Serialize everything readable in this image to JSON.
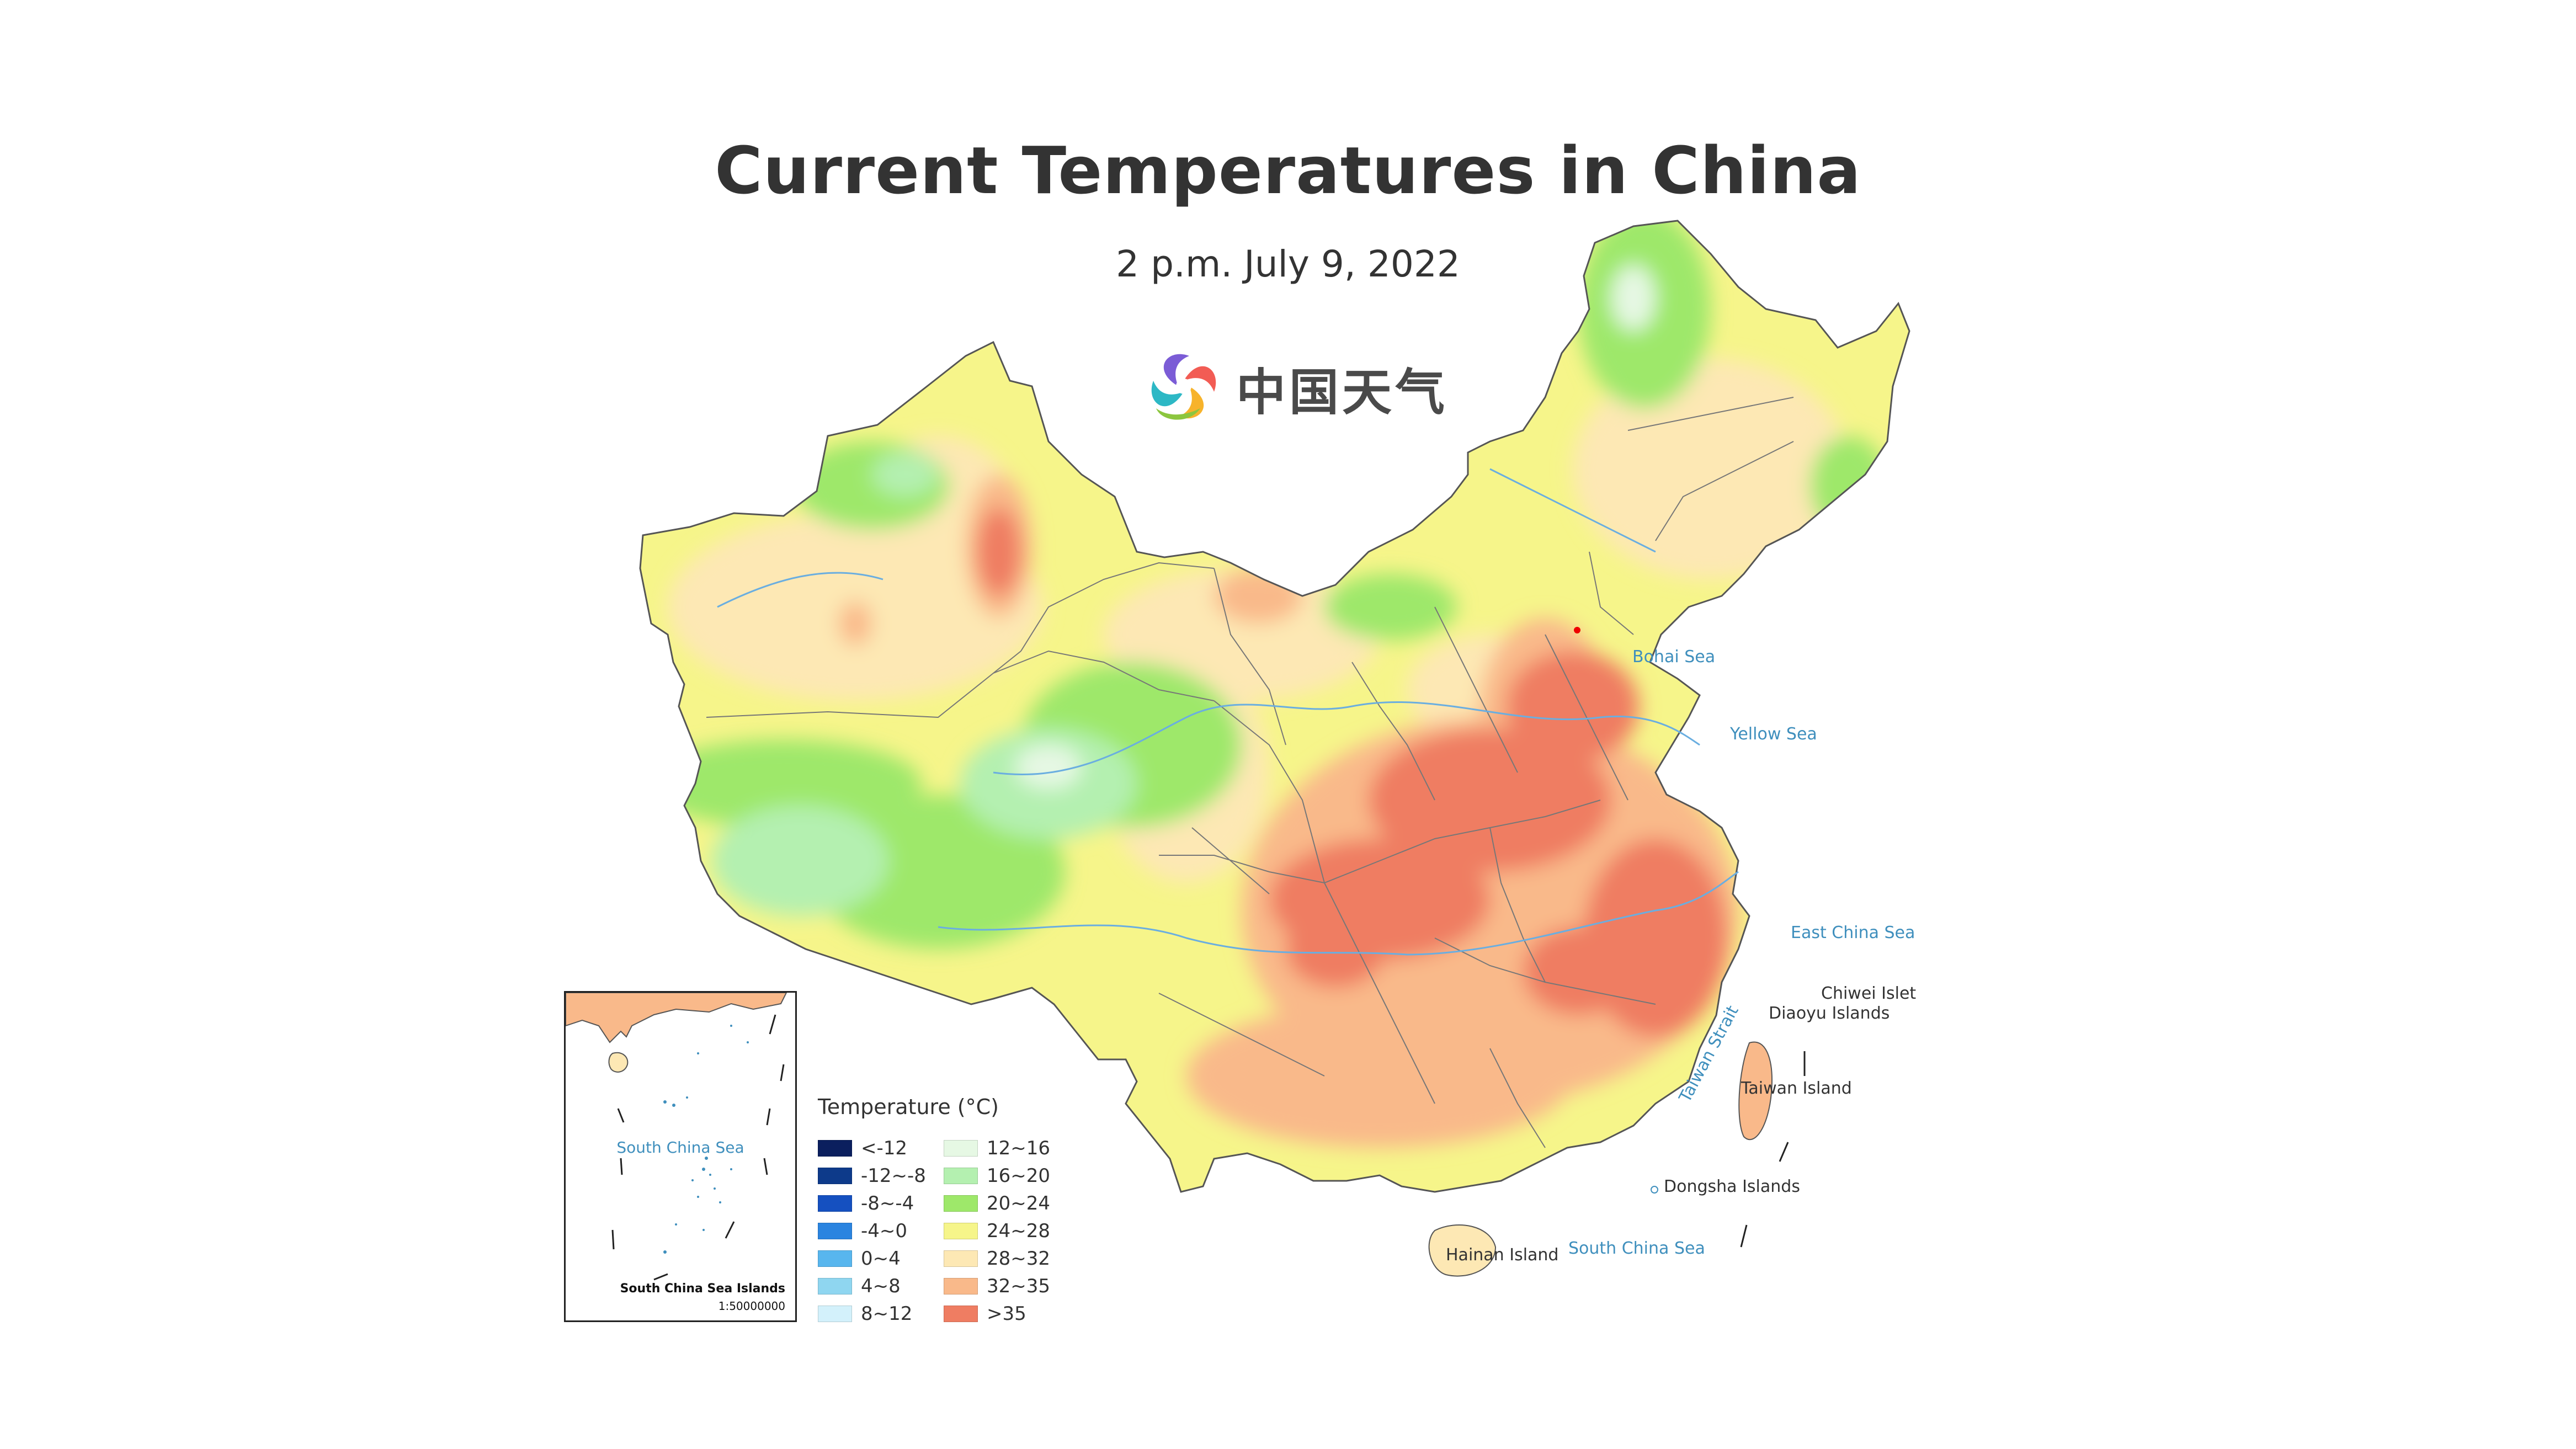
{
  "title": "Current Temperatures in China",
  "subtitle": "2 p.m. July 9, 2022",
  "logo": {
    "text": "中国天气",
    "icon": "swirl-logo-icon"
  },
  "colors": {
    "lt_m12": "#0b1f5e",
    "m12_m8": "#0d3a8a",
    "m8_m4": "#1550c0",
    "m4_0": "#2a84e0",
    "c0_4": "#58b6ee",
    "c4_8": "#8fd6f0",
    "c8_12": "#d3f1fb",
    "c12_16": "#e6f8e4",
    "c16_20": "#b4f0b0",
    "c20_24": "#9ee86a",
    "c24_28": "#f6f58a",
    "c28_32": "#fde8b4",
    "c32_35": "#f9b98a",
    "gt35": "#ef7d62",
    "sea": "#3f8fbd",
    "border": "#777777"
  },
  "legend": {
    "title": "Temperature (°C)",
    "left": [
      {
        "label": "<-12",
        "color": "#0b1f5e"
      },
      {
        "label": "-12~-8",
        "color": "#0d3a8a"
      },
      {
        "label": "-8~-4",
        "color": "#1550c0"
      },
      {
        "label": "-4~0",
        "color": "#2a84e0"
      },
      {
        "label": "0~4",
        "color": "#58b6ee"
      },
      {
        "label": "4~8",
        "color": "#8fd6f0"
      },
      {
        "label": "8~12",
        "color": "#d3f1fb"
      }
    ],
    "right": [
      {
        "label": "12~16",
        "color": "#e6f8e4"
      },
      {
        "label": "16~20",
        "color": "#b4f0b0"
      },
      {
        "label": "20~24",
        "color": "#9ee86a"
      },
      {
        "label": "24~28",
        "color": "#f6f58a"
      },
      {
        "label": "28~32",
        "color": "#fde8b4"
      },
      {
        "label": "32~35",
        "color": "#f9b98a"
      },
      {
        "label": ">35",
        "color": "#ef7d62"
      }
    ]
  },
  "labels": {
    "bohai_sea": "Bohai Sea",
    "yellow_sea": "Yellow Sea",
    "east_china_sea": "East China Sea",
    "chiwei_islet": "Chiwei Islet",
    "diaoyu_islands": "Diaoyu Islands",
    "taiwan_strait": "Taiwan Strait",
    "taiwan_island": "Taiwan Island",
    "dongsha_islands": "Dongsha Islands",
    "hainan_island": "Hainan Island",
    "south_china_sea": "South China Sea"
  },
  "inset": {
    "sea_label": "South China Sea",
    "title": "South China Sea Islands",
    "scale": "1:50000000"
  }
}
